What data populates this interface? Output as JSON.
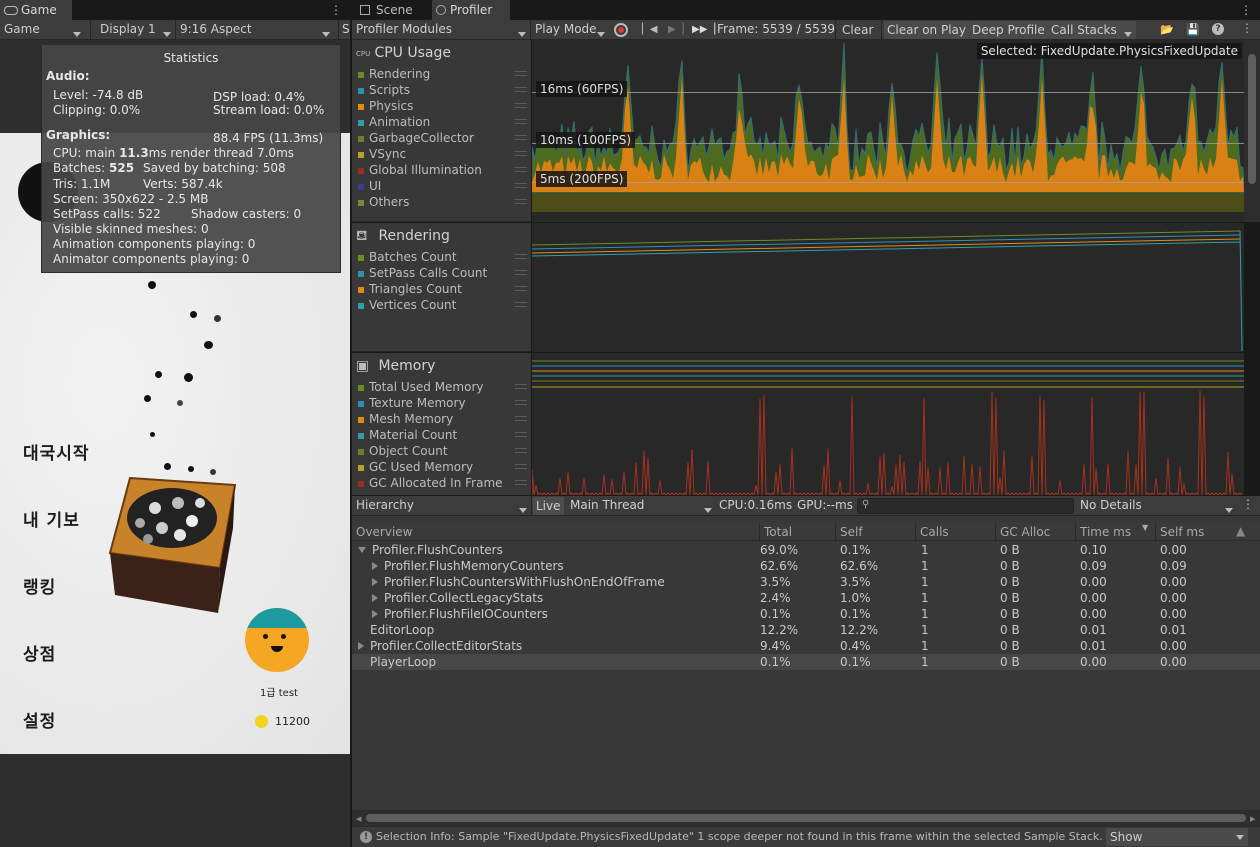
{
  "tabs": {
    "game": "Game",
    "scene": "Scene",
    "profiler": "Profiler"
  },
  "game_toolbar": {
    "mode": "Game",
    "display": "Display 1",
    "aspect": "9:16 Aspect",
    "trailing": "S"
  },
  "statistics": {
    "title": "Statistics",
    "audio_label": "Audio:",
    "level": "Level: -74.8 dB",
    "clipping": "Clipping: 0.0%",
    "dsp_load": "DSP load: 0.4%",
    "stream_load": "Stream load: 0.0%",
    "graphics_label": "Graphics:",
    "fps": "88.4 FPS (11.3ms)",
    "cpu_prefix": "CPU: main ",
    "cpu_main": "11.3",
    "cpu_suffix": "ms  render thread 7.0ms",
    "batches_prefix": "Batches: ",
    "batches": "525",
    "saved_batching": "Saved by batching: 508",
    "tris": "Tris: 1.1M",
    "verts": "Verts: 587.4k",
    "screen": "Screen: 350x622 - 2.5 MB",
    "setpass": "SetPass calls: 522",
    "shadow_casters": "Shadow casters: 0",
    "skinned": "Visible skinned meshes: 0",
    "animation_components": "Animation components playing: 0",
    "animator_components": "Animator components playing: 0"
  },
  "game_menu": {
    "items": [
      "대국시작",
      "내 기보",
      "랭킹",
      "상점",
      "설정"
    ],
    "player_rank_name": "1급 test",
    "coins": "11200"
  },
  "profiler_toolbar": {
    "modules": "Profiler Modules",
    "play_mode": "Play Mode",
    "frame": "Frame: 5539 / 5539",
    "clear": "Clear",
    "clear_on_play": "Clear on Play",
    "deep_profile": "Deep Profile",
    "call_stacks": "Call Stacks"
  },
  "cpu_module": {
    "title": "CPU Usage",
    "items": [
      {
        "label": "Rendering",
        "color": "#6b8e23"
      },
      {
        "label": "Scripts",
        "color": "#2f8fb3"
      },
      {
        "label": "Physics",
        "color": "#e08a16"
      },
      {
        "label": "Animation",
        "color": "#2f9ea8"
      },
      {
        "label": "GarbageCollector",
        "color": "#757a2a"
      },
      {
        "label": "VSync",
        "color": "#b8a020"
      },
      {
        "label": "Global Illumination",
        "color": "#9c2e1e"
      },
      {
        "label": "UI",
        "color": "#3a3a9e"
      },
      {
        "label": "Others",
        "color": "#7a8a3a"
      }
    ],
    "selected": "Selected: FixedUpdate.PhysicsFixedUpdate",
    "fps_lines": [
      "16ms (60FPS)",
      "10ms (100FPS)",
      "5ms (200FPS)"
    ]
  },
  "rendering_module": {
    "title": "Rendering",
    "items": [
      {
        "label": "Batches Count",
        "color": "#6b8e23"
      },
      {
        "label": "SetPass Calls Count",
        "color": "#2f8fb3"
      },
      {
        "label": "Triangles Count",
        "color": "#e08a16"
      },
      {
        "label": "Vertices Count",
        "color": "#2f9ea8"
      }
    ]
  },
  "memory_module": {
    "title": "Memory",
    "items": [
      {
        "label": "Total Used Memory",
        "color": "#6b8e23"
      },
      {
        "label": "Texture Memory",
        "color": "#2f8fb3"
      },
      {
        "label": "Mesh Memory",
        "color": "#e08a16"
      },
      {
        "label": "Material Count",
        "color": "#2f9ea8"
      },
      {
        "label": "Object Count",
        "color": "#757a2a"
      },
      {
        "label": "GC Used Memory",
        "color": "#b8a020"
      },
      {
        "label": "GC Allocated In Frame",
        "color": "#9c2e1e"
      }
    ]
  },
  "details_toolbar": {
    "view": "Hierarchy",
    "live": "Live",
    "thread": "Main Thread",
    "cpu": "CPU:0.16ms",
    "gpu": "GPU:--ms",
    "search_placeholder": "",
    "details": "No Details"
  },
  "hierarchy_table": {
    "columns": [
      "Overview",
      "Total",
      "Self",
      "Calls",
      "GC Alloc",
      "Time ms",
      "Self ms"
    ],
    "rows": [
      {
        "name": "Profiler.FlushCounters",
        "total": "69.0%",
        "self": "0.1%",
        "calls": "1",
        "gc": "0 B",
        "time": "0.10",
        "selfms": "0.00"
      },
      {
        "name": "Profiler.FlushMemoryCounters",
        "total": "62.6%",
        "self": "62.6%",
        "calls": "1",
        "gc": "0 B",
        "time": "0.09",
        "selfms": "0.09"
      },
      {
        "name": "Profiler.FlushCountersWithFlushOnEndOfFrame",
        "total": "3.5%",
        "self": "3.5%",
        "calls": "1",
        "gc": "0 B",
        "time": "0.00",
        "selfms": "0.00"
      },
      {
        "name": "Profiler.CollectLegacyStats",
        "total": "2.4%",
        "self": "1.0%",
        "calls": "1",
        "gc": "0 B",
        "time": "0.00",
        "selfms": "0.00"
      },
      {
        "name": "Profiler.FlushFileIOCounters",
        "total": "0.1%",
        "self": "0.1%",
        "calls": "1",
        "gc": "0 B",
        "time": "0.00",
        "selfms": "0.00"
      },
      {
        "name": "EditorLoop",
        "total": "12.2%",
        "self": "12.2%",
        "calls": "1",
        "gc": "0 B",
        "time": "0.01",
        "selfms": "0.01"
      },
      {
        "name": "Profiler.CollectEditorStats",
        "total": "9.4%",
        "self": "0.4%",
        "calls": "1",
        "gc": "0 B",
        "time": "0.01",
        "selfms": "0.00"
      },
      {
        "name": "PlayerLoop",
        "total": "0.1%",
        "self": "0.1%",
        "calls": "1",
        "gc": "0 B",
        "time": "0.00",
        "selfms": "0.00"
      }
    ]
  },
  "status": {
    "message": "Selection Info: Sample \"FixedUpdate.PhysicsFixedUpdate\" 1 scope deeper not found in this frame within the selected Sample Stack.",
    "show": "Show"
  }
}
